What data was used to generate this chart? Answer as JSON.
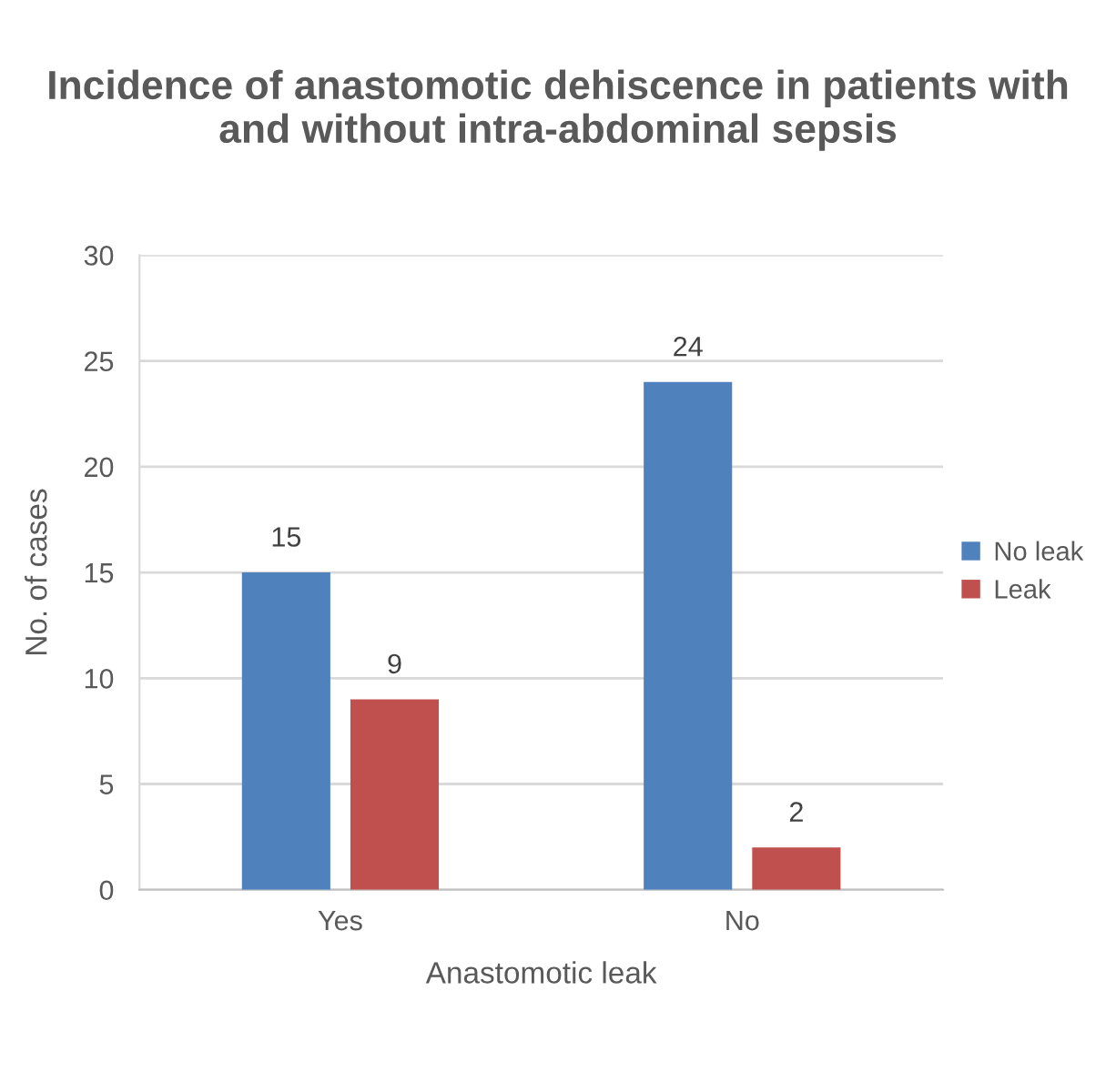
{
  "chart_data": {
    "type": "bar",
    "title": "Incidence of anastomotic dehiscence in patients with\nand without intra-abdominal sepsis",
    "xlabel": "Anastomotic leak",
    "ylabel": "No. of cases",
    "categories": [
      "Yes",
      "No"
    ],
    "series": [
      {
        "name": "No leak",
        "color": "#4f81bd",
        "values": [
          15,
          24
        ]
      },
      {
        "name": "Leak",
        "color": "#c0504d",
        "values": [
          9,
          2
        ]
      }
    ],
    "ylim": [
      0,
      30
    ],
    "yticks": [
      0,
      5,
      10,
      15,
      20,
      25,
      30
    ],
    "grid": "y",
    "legend": "right",
    "data_labels": true
  }
}
